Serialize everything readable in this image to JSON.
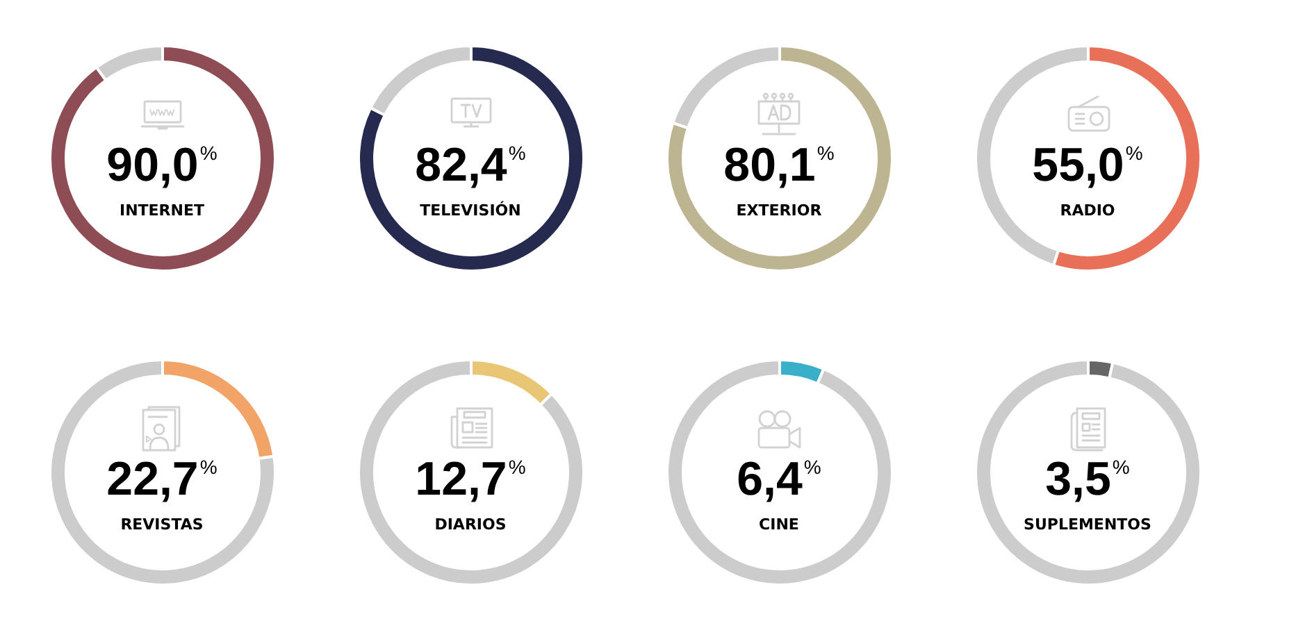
{
  "chart_data": [
    {
      "type": "donut",
      "title": "INTERNET",
      "annotations": [
        "90,0$^{%}$"
      ],
      "categories": [
        null,
        null
      ],
      "values": [
        90.0,
        10.0
      ],
      "colors": [
        "#8e4c55",
        "#cccccc"
      ]
    },
    {
      "type": "donut",
      "title": "TELEVISIÓN",
      "annotations": [
        "82,4$^{%}$"
      ],
      "categories": [
        null,
        null
      ],
      "values": [
        82.4,
        17.6
      ],
      "colors": [
        "#252a4e",
        "#cccccc"
      ]
    },
    {
      "type": "donut",
      "title": "EXTERIOR",
      "annotations": [
        "80,1$^{%}$"
      ],
      "categories": [
        null,
        null
      ],
      "values": [
        80.1,
        19.9
      ],
      "colors": [
        "#bdb592",
        "#cccccc"
      ]
    },
    {
      "type": "donut",
      "title": "RADIO",
      "annotations": [
        "55,0$^{%}$"
      ],
      "categories": [
        null,
        null
      ],
      "values": [
        55.0,
        45.0
      ],
      "colors": [
        "#e87059",
        "#cccccc"
      ]
    },
    {
      "type": "donut",
      "title": "REVISTAS",
      "annotations": [
        "22,7$^{%}$"
      ],
      "categories": [
        null,
        null
      ],
      "values": [
        22.7,
        77.3
      ],
      "colors": [
        "#f2a468",
        "#cccccc"
      ]
    },
    {
      "type": "donut",
      "title": "DIARIOS",
      "annotations": [
        "12,7$^{%}$"
      ],
      "categories": [
        null,
        null
      ],
      "values": [
        12.7,
        87.3
      ],
      "colors": [
        "#e8c676",
        "#cccccc"
      ]
    },
    {
      "type": "donut",
      "title": "CINE",
      "annotations": [
        "6,4$^{%}$"
      ],
      "categories": [
        null,
        null
      ],
      "values": [
        6.4,
        93.6
      ],
      "colors": [
        "#39afca",
        "#cccccc"
      ]
    },
    {
      "type": "donut",
      "title": "SUPLEMENTOS",
      "annotations": [
        "3,5$^{%}$"
      ],
      "categories": [
        null,
        null
      ],
      "values": [
        3.5,
        96.5
      ],
      "colors": [
        "#666666",
        "#cccccc"
      ]
    }
  ]
}
